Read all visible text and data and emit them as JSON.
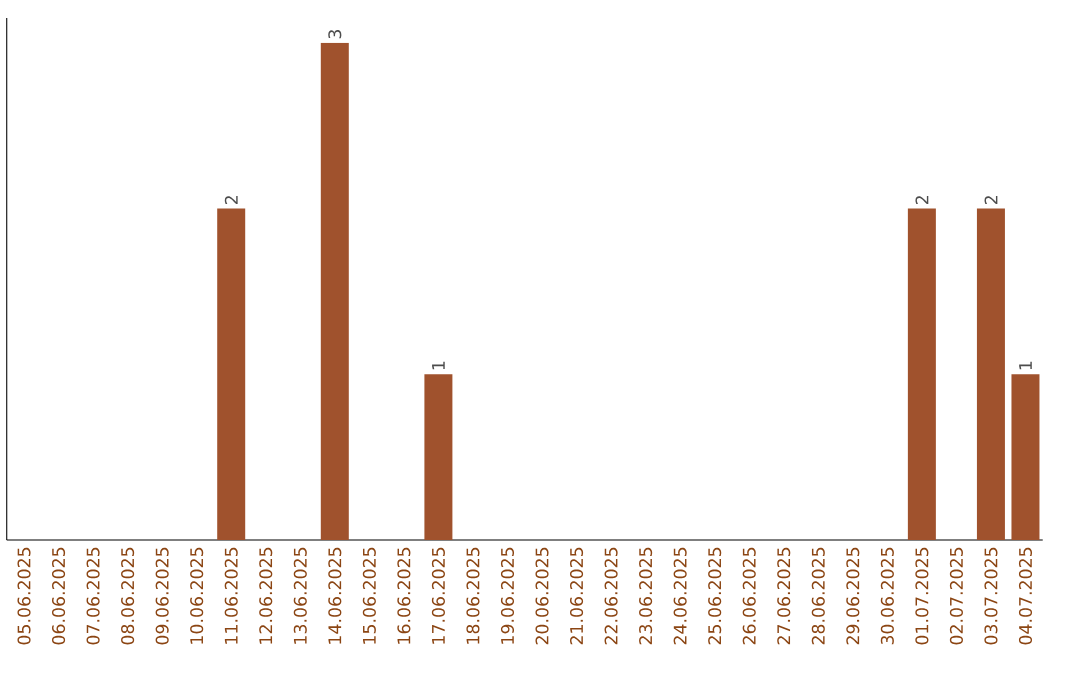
{
  "chart_data": {
    "type": "bar",
    "categories": [
      "05.06.2025",
      "06.06.2025",
      "07.06.2025",
      "08.06.2025",
      "09.06.2025",
      "10.06.2025",
      "11.06.2025",
      "12.06.2025",
      "13.06.2025",
      "14.06.2025",
      "15.06.2025",
      "16.06.2025",
      "17.06.2025",
      "18.06.2025",
      "19.06.2025",
      "20.06.2025",
      "21.06.2025",
      "22.06.2025",
      "23.06.2025",
      "24.06.2025",
      "25.06.2025",
      "26.06.2025",
      "27.06.2025",
      "28.06.2025",
      "29.06.2025",
      "30.06.2025",
      "01.07.2025",
      "02.07.2025",
      "03.07.2025",
      "04.07.2025"
    ],
    "values": [
      0,
      0,
      0,
      0,
      0,
      0,
      2,
      0,
      0,
      3,
      0,
      0,
      1,
      0,
      0,
      0,
      0,
      0,
      0,
      0,
      0,
      0,
      0,
      0,
      0,
      0,
      2,
      0,
      2,
      1
    ],
    "value_labels": [
      null,
      null,
      null,
      null,
      null,
      null,
      "2",
      null,
      null,
      "3",
      null,
      null,
      "1",
      null,
      null,
      null,
      null,
      null,
      null,
      null,
      null,
      null,
      null,
      null,
      null,
      null,
      "2",
      null,
      "2",
      "1"
    ],
    "color": "#a0522d",
    "tick_labels": "x"
  }
}
